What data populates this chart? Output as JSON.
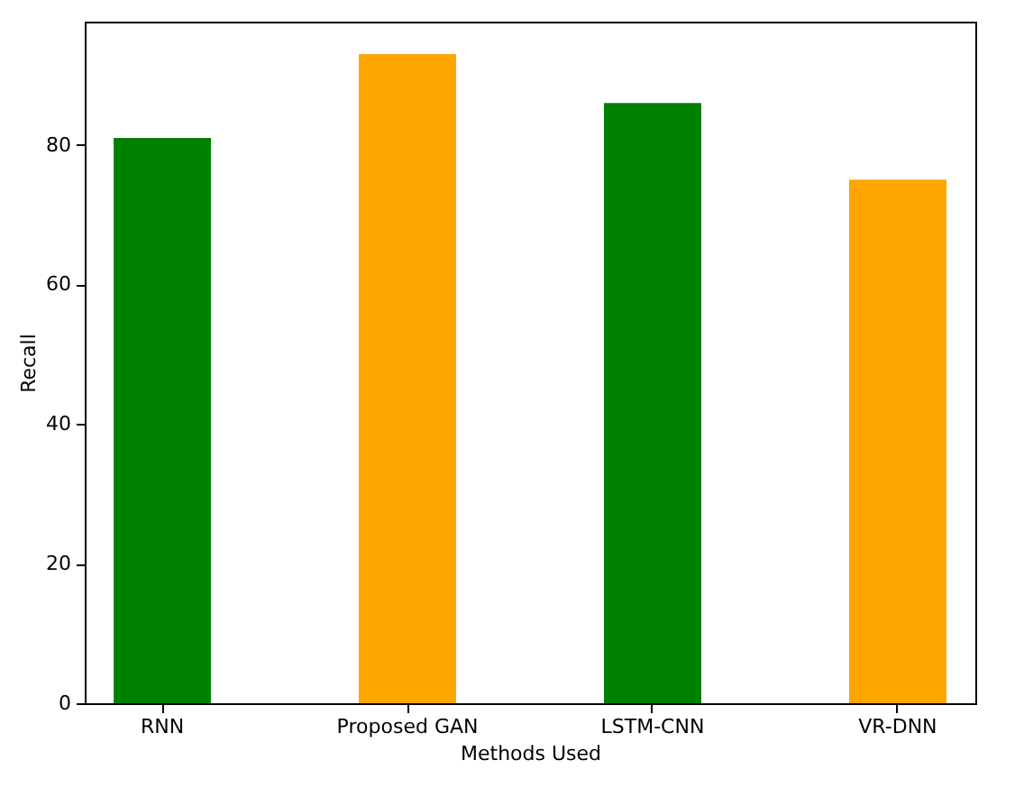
{
  "chart_data": {
    "type": "bar",
    "xlabel": "Methods Used",
    "ylabel": "Recall",
    "categories": [
      "RNN",
      "Proposed GAN",
      "LSTM-CNN",
      "VR-DNN"
    ],
    "values": [
      81,
      93,
      86,
      75
    ],
    "colors": [
      "#008000",
      "#ffa500",
      "#008000",
      "#ffa500"
    ],
    "ylim": [
      0,
      97.65
    ],
    "yticks": [
      0,
      20,
      40,
      60,
      80
    ],
    "grid": false
  }
}
